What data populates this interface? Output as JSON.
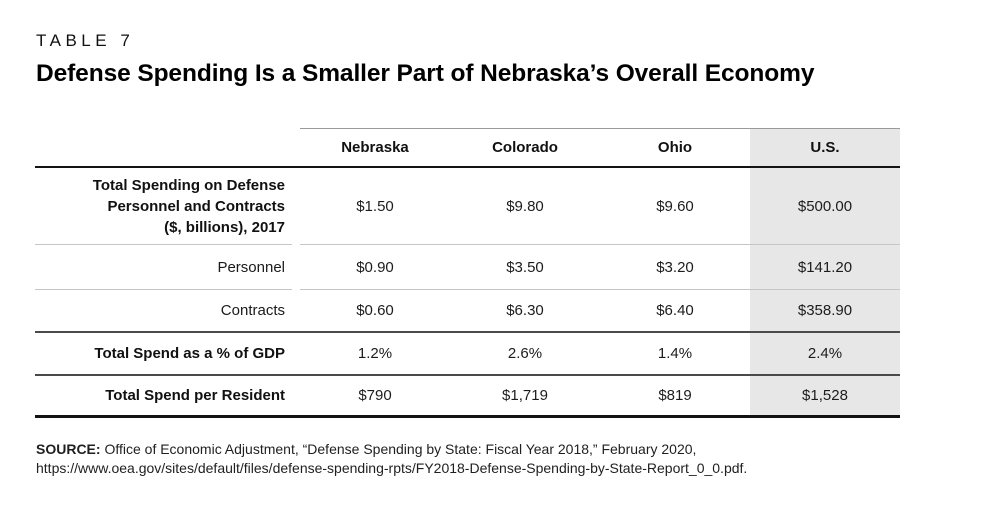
{
  "page": {
    "table_number": "TABLE 7",
    "title": "Defense Spending Is a Smaller Part of Nebraska’s Overall Economy"
  },
  "table": {
    "columns": [
      "Nebraska",
      "Colorado",
      "Ohio",
      "U.S."
    ],
    "highlight_column": "U.S.",
    "highlight_color": "#e7e7e7",
    "rows": [
      {
        "label_lines": [
          "Total Spending on Defense",
          "Personnel and Contracts",
          "($, billions), 2017"
        ],
        "values": [
          "$1.50",
          "$9.80",
          "$9.60",
          "$500.00"
        ]
      },
      {
        "label": "Personnel",
        "values": [
          "$0.90",
          "$3.50",
          "$3.20",
          "$141.20"
        ]
      },
      {
        "label": "Contracts",
        "values": [
          "$0.60",
          "$6.30",
          "$6.40",
          "$358.90"
        ]
      },
      {
        "label": "Total Spend as a % of GDP",
        "values": [
          "1.2%",
          "2.6%",
          "1.4%",
          "2.4%"
        ]
      },
      {
        "label": "Total Spend per Resident",
        "values": [
          "$790",
          "$1,719",
          "$819",
          "$1,528"
        ]
      }
    ]
  },
  "source": {
    "label": "SOURCE:",
    "text": "Office of Economic Adjustment, “Defense Spending by State: Fiscal Year 2018,” February 2020, https://www.oea.gov/sites/default/files/defense-spending-rpts/FY2018-Defense-Spending-by-State-Report_0_0.pdf."
  }
}
